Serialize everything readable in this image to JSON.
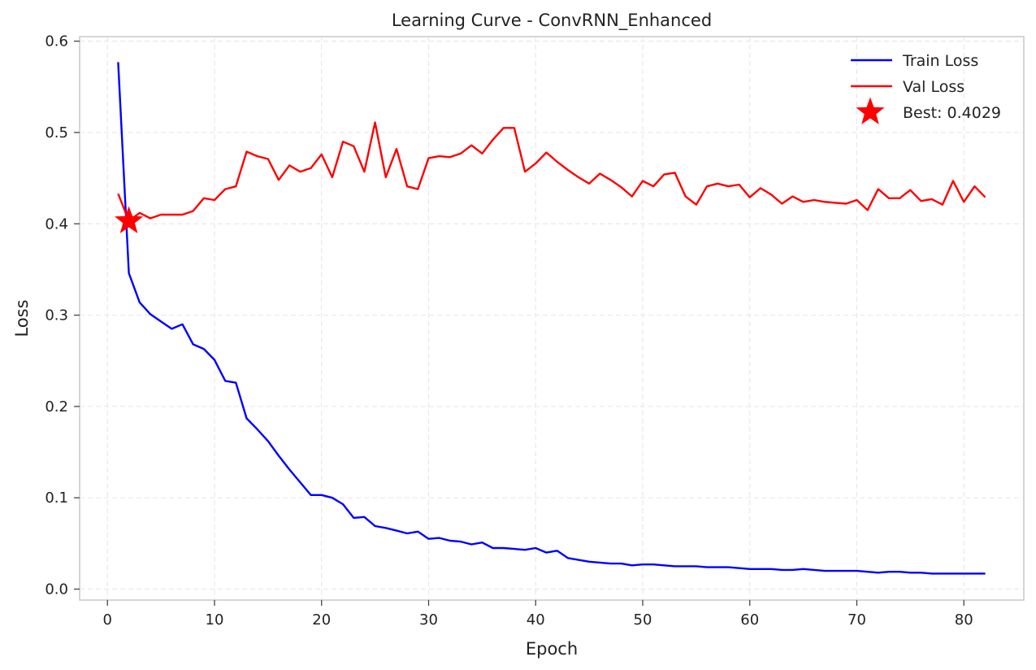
{
  "chart_data": {
    "type": "line",
    "title": "Learning Curve - ConvRNN_Enhanced",
    "xlabel": "Epoch",
    "ylabel": "Loss",
    "xlim": [
      -2.6,
      85.6
    ],
    "ylim": [
      -0.012,
      0.605
    ],
    "xticks": [
      0,
      10,
      20,
      30,
      40,
      50,
      60,
      70,
      80
    ],
    "yticks": [
      0.0,
      0.1,
      0.2,
      0.3,
      0.4,
      0.5,
      0.6
    ],
    "ytick_labels": [
      "0.0",
      "0.1",
      "0.2",
      "0.3",
      "0.4",
      "0.5",
      "0.6"
    ],
    "grid": true,
    "legend_position": "top-right",
    "series": [
      {
        "name": "Train Loss",
        "color": "#0000ff",
        "x": [
          1,
          2,
          3,
          4,
          5,
          6,
          7,
          8,
          9,
          10,
          11,
          12,
          13,
          14,
          15,
          16,
          17,
          18,
          19,
          20,
          21,
          22,
          23,
          24,
          25,
          26,
          27,
          28,
          29,
          30,
          31,
          32,
          33,
          34,
          35,
          36,
          37,
          38,
          39,
          40,
          41,
          42,
          43,
          44,
          45,
          46,
          47,
          48,
          49,
          50,
          51,
          52,
          53,
          54,
          55,
          56,
          57,
          58,
          59,
          60,
          61,
          62,
          63,
          64,
          65,
          66,
          67,
          68,
          69,
          70,
          71,
          72,
          73,
          74,
          75,
          76,
          77,
          78,
          79,
          80,
          81,
          82
        ],
        "values": [
          0.577,
          0.346,
          0.314,
          0.301,
          0.293,
          0.285,
          0.29,
          0.268,
          0.263,
          0.251,
          0.228,
          0.226,
          0.187,
          0.175,
          0.162,
          0.146,
          0.131,
          0.117,
          0.103,
          0.103,
          0.1,
          0.093,
          0.078,
          0.079,
          0.069,
          0.067,
          0.064,
          0.061,
          0.063,
          0.055,
          0.056,
          0.053,
          0.052,
          0.049,
          0.051,
          0.045,
          0.045,
          0.044,
          0.043,
          0.045,
          0.04,
          0.042,
          0.034,
          0.032,
          0.03,
          0.029,
          0.028,
          0.028,
          0.026,
          0.027,
          0.027,
          0.026,
          0.025,
          0.025,
          0.025,
          0.024,
          0.024,
          0.024,
          0.023,
          0.022,
          0.022,
          0.022,
          0.021,
          0.021,
          0.022,
          0.021,
          0.02,
          0.02,
          0.02,
          0.02,
          0.019,
          0.018,
          0.019,
          0.019,
          0.018,
          0.018,
          0.017,
          0.017,
          0.017,
          0.017,
          0.017,
          0.017
        ]
      },
      {
        "name": "Val Loss",
        "color": "#ff0000",
        "x": [
          1,
          2,
          3,
          4,
          5,
          6,
          7,
          8,
          9,
          10,
          11,
          12,
          13,
          14,
          15,
          16,
          17,
          18,
          19,
          20,
          21,
          22,
          23,
          24,
          25,
          26,
          27,
          28,
          29,
          30,
          31,
          32,
          33,
          34,
          35,
          36,
          37,
          38,
          39,
          40,
          41,
          42,
          43,
          44,
          45,
          46,
          47,
          48,
          49,
          50,
          51,
          52,
          53,
          54,
          55,
          56,
          57,
          58,
          59,
          60,
          61,
          62,
          63,
          64,
          65,
          66,
          67,
          68,
          69,
          70,
          71,
          72,
          73,
          74,
          75,
          76,
          77,
          78,
          79,
          80,
          81,
          82
        ],
        "values": [
          0.433,
          0.403,
          0.412,
          0.406,
          0.41,
          0.41,
          0.41,
          0.414,
          0.428,
          0.426,
          0.438,
          0.441,
          0.479,
          0.474,
          0.471,
          0.448,
          0.464,
          0.457,
          0.461,
          0.476,
          0.451,
          0.49,
          0.485,
          0.457,
          0.511,
          0.451,
          0.482,
          0.441,
          0.438,
          0.472,
          0.474,
          0.473,
          0.477,
          0.486,
          0.477,
          0.492,
          0.505,
          0.505,
          0.457,
          0.466,
          0.478,
          0.468,
          0.459,
          0.451,
          0.444,
          0.455,
          0.448,
          0.44,
          0.43,
          0.447,
          0.441,
          0.454,
          0.456,
          0.43,
          0.421,
          0.441,
          0.444,
          0.441,
          0.443,
          0.429,
          0.439,
          0.432,
          0.422,
          0.43,
          0.424,
          0.426,
          0.424,
          0.423,
          0.422,
          0.426,
          0.415,
          0.438,
          0.428,
          0.428,
          0.437,
          0.425,
          0.427,
          0.421,
          0.447,
          0.424,
          0.441,
          0.429
        ]
      }
    ],
    "markers": [
      {
        "name": "Best: 0.4029",
        "x": 2,
        "y": 0.4029,
        "color": "#ff0000",
        "shape": "star"
      }
    ],
    "colors": {
      "grid": "#e8e8e8",
      "axes": "#cccccc",
      "text": "#222222"
    }
  }
}
